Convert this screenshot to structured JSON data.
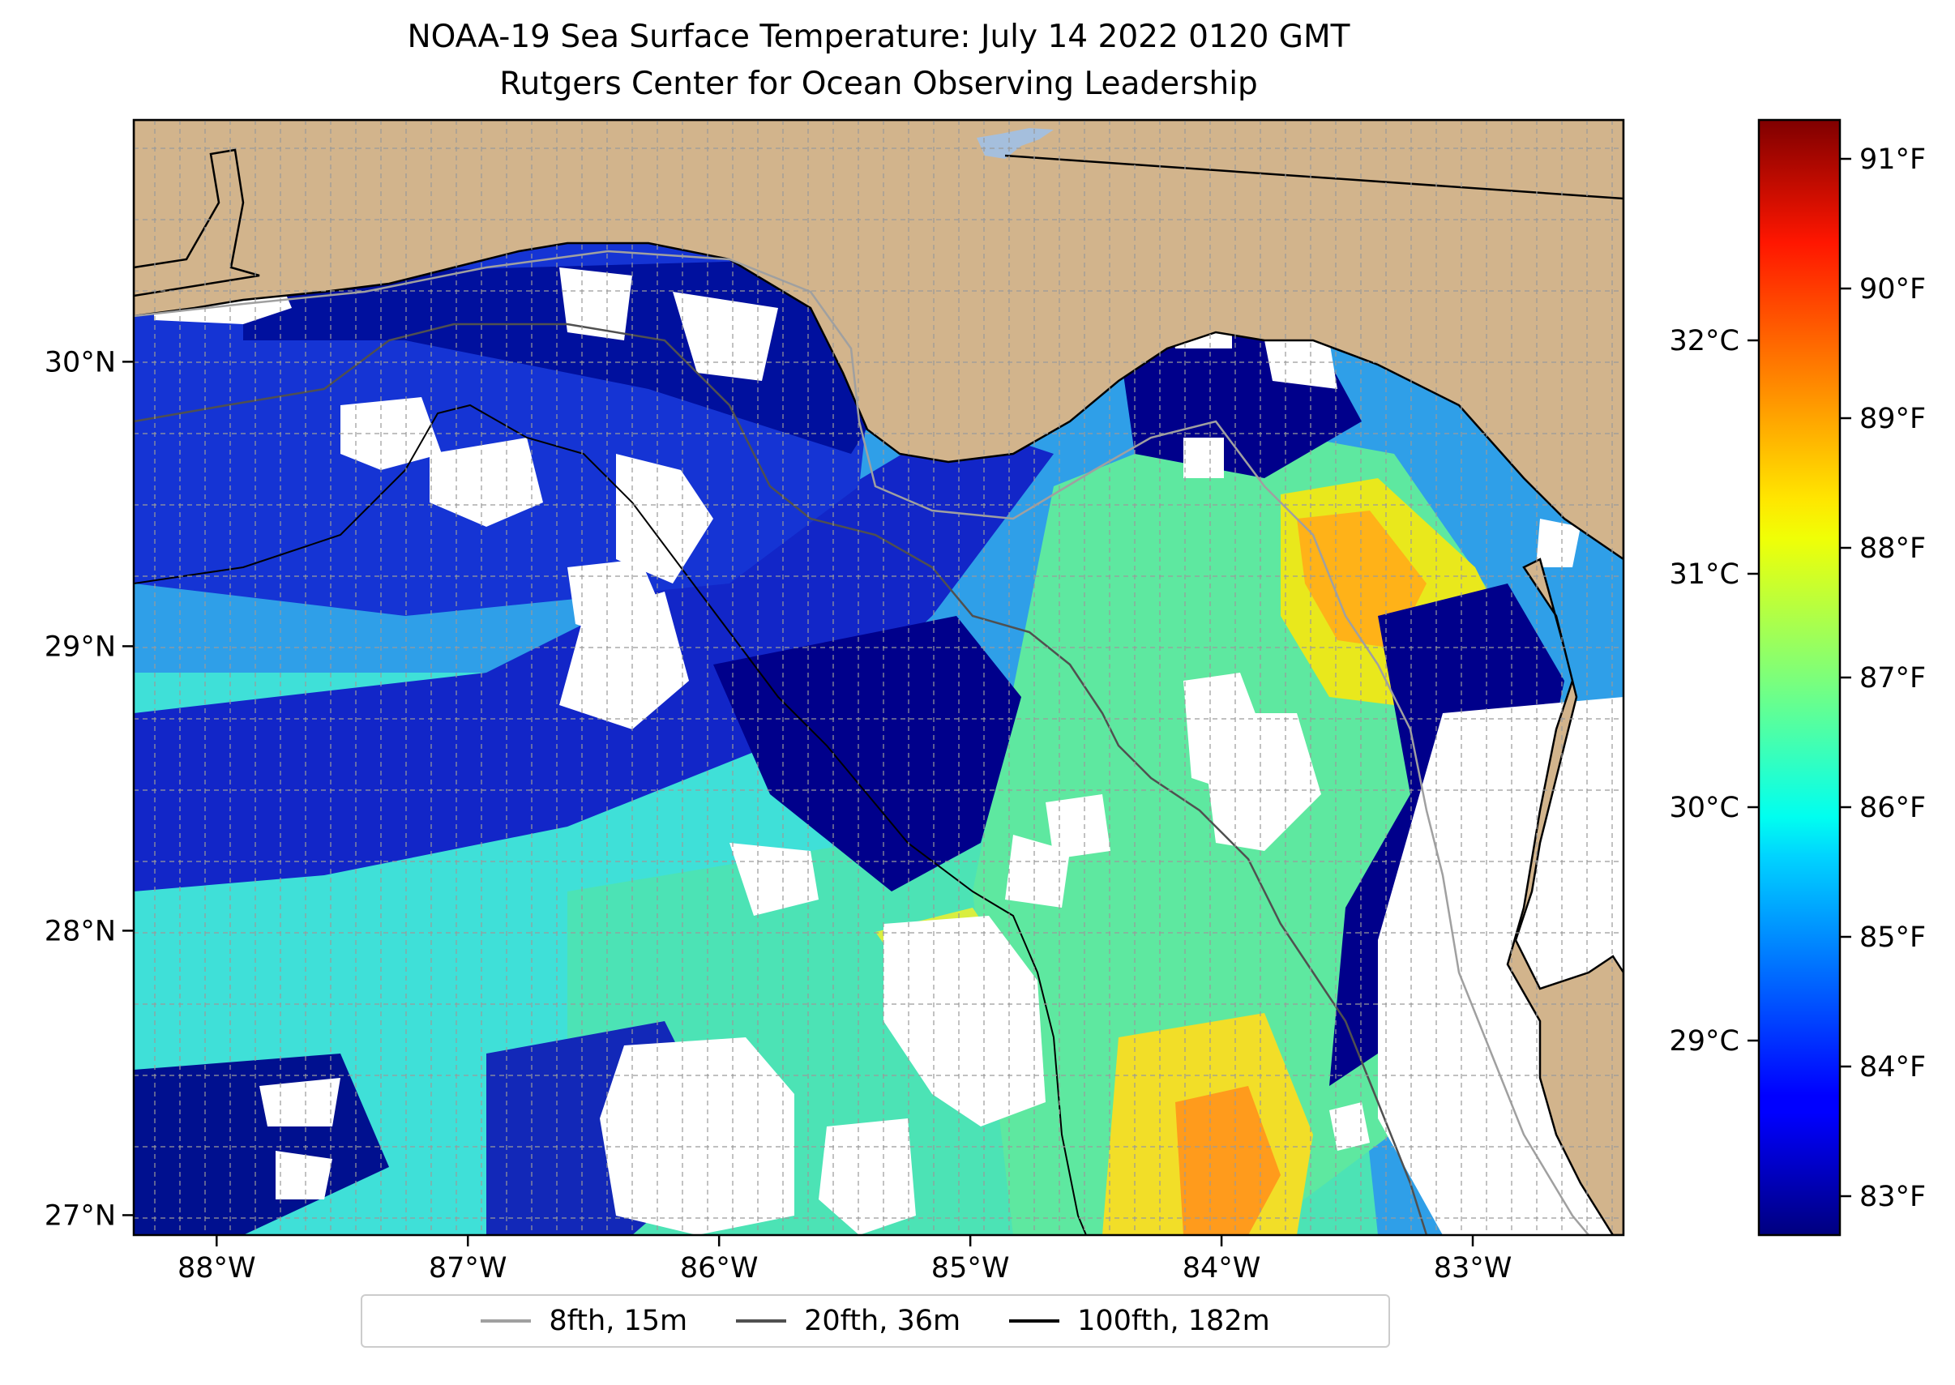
{
  "title": {
    "line1": "NOAA-19 Sea Surface Temperature: July 14 2022 0120 GMT",
    "line2": "Rutgers Center for Ocean Observing Leadership"
  },
  "map": {
    "lon_range": [
      -88.33,
      -82.4
    ],
    "lat_range": [
      26.93,
      30.85
    ],
    "lon_ticks": [
      {
        "value": -88,
        "label": "88°W"
      },
      {
        "value": -87,
        "label": "87°W"
      },
      {
        "value": -86,
        "label": "86°W"
      },
      {
        "value": -85,
        "label": "85°W"
      },
      {
        "value": -84,
        "label": "84°W"
      },
      {
        "value": -83,
        "label": "83°W"
      }
    ],
    "lat_ticks": [
      {
        "value": 27,
        "label": "27°N"
      },
      {
        "value": 28,
        "label": "28°N"
      },
      {
        "value": 29,
        "label": "29°N"
      },
      {
        "value": 30,
        "label": "30°N"
      }
    ],
    "colors": {
      "land": "#D2B48C",
      "nodata": "#FFFFFF",
      "lake": "#A5BFDD"
    }
  },
  "colorbar": {
    "colormap": "jet",
    "f_range": [
      82.7,
      91.3
    ],
    "f_ticks": [
      {
        "value": 83,
        "label": "83°F"
      },
      {
        "value": 84,
        "label": "84°F"
      },
      {
        "value": 85,
        "label": "85°F"
      },
      {
        "value": 86,
        "label": "86°F"
      },
      {
        "value": 87,
        "label": "87°F"
      },
      {
        "value": 88,
        "label": "88°F"
      },
      {
        "value": 89,
        "label": "89°F"
      },
      {
        "value": 90,
        "label": "90°F"
      },
      {
        "value": 91,
        "label": "91°F"
      }
    ],
    "c_ticks": [
      {
        "value": 29,
        "label": "29°C"
      },
      {
        "value": 30,
        "label": "30°C"
      },
      {
        "value": 31,
        "label": "31°C"
      },
      {
        "value": 32,
        "label": "32°C"
      }
    ]
  },
  "legend": [
    {
      "label": "8fth, 15m",
      "color": "#A0A0A0"
    },
    {
      "label": "20fth, 36m",
      "color": "#505050"
    },
    {
      "label": "100fth, 182m",
      "color": "#000000"
    }
  ]
}
